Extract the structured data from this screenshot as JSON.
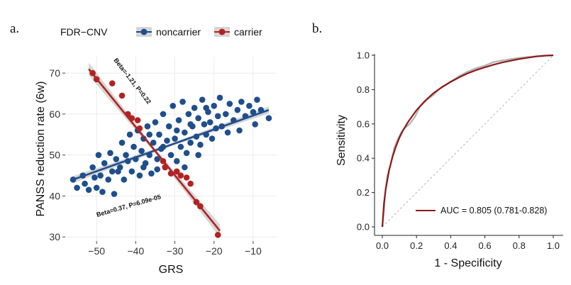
{
  "panel_labels": {
    "a": "a.",
    "b": "b."
  },
  "colors": {
    "noncarrier": "#1f4e8c",
    "carrier": "#b22222",
    "grid": "#ebebeb",
    "band": "#c8c8c8",
    "roc_smooth": "#8b1a1a",
    "roc_empirical": "#b0b0b0",
    "diagonal": "#b5b5b5"
  },
  "chart_data": [
    {
      "type": "scatter",
      "panel": "a",
      "xlabel": "GRS",
      "ylabel": "PANSS reduction rate (6w)",
      "xlim": [
        -58,
        -4
      ],
      "ylim": [
        29,
        74
      ],
      "xticks": [
        -50,
        -40,
        -30,
        -20,
        -10
      ],
      "yticks": [
        30,
        40,
        50,
        60,
        70
      ],
      "grid": true,
      "legend": {
        "title": "FDR−CNV",
        "placement": "top",
        "entries": [
          "noncarrier",
          "carrier"
        ]
      },
      "series": [
        {
          "name": "noncarrier",
          "fit": {
            "x": [
              -56,
              -6
            ],
            "y": [
              44.0,
              61.0
            ]
          },
          "annotation": "Beta=0.37, P=6.09e-05",
          "points": [
            [
              -56.0,
              44.0
            ],
            [
              -55.0,
              42.0
            ],
            [
              -53.5,
              45.0
            ],
            [
              -53.0,
              43.0
            ],
            [
              -52.0,
              41.5
            ],
            [
              -51.0,
              47.0
            ],
            [
              -50.5,
              44.5
            ],
            [
              -50.0,
              42.0
            ],
            [
              -49.5,
              50.0
            ],
            [
              -49.0,
              45.0
            ],
            [
              -48.5,
              41.0
            ],
            [
              -48.0,
              48.0
            ],
            [
              -47.0,
              44.0
            ],
            [
              -46.5,
              50.5
            ],
            [
              -46.0,
              46.0
            ],
            [
              -45.5,
              40.5
            ],
            [
              -45.0,
              49.0
            ],
            [
              -44.0,
              47.0
            ],
            [
              -43.5,
              53.0
            ],
            [
              -43.0,
              44.0
            ],
            [
              -42.5,
              50.0
            ],
            [
              -42.0,
              48.5
            ],
            [
              -41.5,
              55.0
            ],
            [
              -41.0,
              46.0
            ],
            [
              -40.5,
              52.0
            ],
            [
              -40.0,
              49.0
            ],
            [
              -39.5,
              56.0
            ],
            [
              -39.0,
              45.0
            ],
            [
              -38.5,
              51.0
            ],
            [
              -38.0,
              54.0
            ],
            [
              -37.5,
              48.0
            ],
            [
              -37.0,
              57.0
            ],
            [
              -36.5,
              50.0
            ],
            [
              -36.0,
              45.5
            ],
            [
              -35.5,
              53.0
            ],
            [
              -35.0,
              58.0
            ],
            [
              -34.5,
              49.0
            ],
            [
              -34.0,
              55.0
            ],
            [
              -33.5,
              51.5
            ],
            [
              -33.0,
              60.0
            ],
            [
              -32.5,
              47.0
            ],
            [
              -32.0,
              53.5
            ],
            [
              -31.5,
              57.0
            ],
            [
              -31.0,
              50.0
            ],
            [
              -30.5,
              62.0
            ],
            [
              -30.0,
              54.0
            ],
            [
              -29.5,
              48.5
            ],
            [
              -29.0,
              58.5
            ],
            [
              -28.5,
              52.0
            ],
            [
              -28.0,
              63.0
            ],
            [
              -27.5,
              55.5
            ],
            [
              -27.0,
              50.5
            ],
            [
              -26.5,
              60.0
            ],
            [
              -26.0,
              53.0
            ],
            [
              -25.5,
              57.0
            ],
            [
              -25.0,
              61.5
            ],
            [
              -24.5,
              54.5
            ],
            [
              -24.0,
              59.0
            ],
            [
              -23.5,
              52.5
            ],
            [
              -23.0,
              63.5
            ],
            [
              -22.5,
              57.5
            ],
            [
              -22.0,
              55.0
            ],
            [
              -21.5,
              60.5
            ],
            [
              -21.0,
              58.0
            ],
            [
              -20.5,
              54.0
            ],
            [
              -20.0,
              62.0
            ],
            [
              -19.5,
              56.5
            ],
            [
              -19.0,
              59.5
            ],
            [
              -18.5,
              64.0
            ],
            [
              -18.0,
              57.0
            ],
            [
              -17.0,
              60.0
            ],
            [
              -16.5,
              55.5
            ],
            [
              -16.0,
              62.5
            ],
            [
              -15.0,
              58.5
            ],
            [
              -14.0,
              61.0
            ],
            [
              -13.5,
              56.0
            ],
            [
              -13.0,
              63.0
            ],
            [
              -12.0,
              59.5
            ],
            [
              -11.0,
              62.0
            ],
            [
              -10.0,
              60.5
            ],
            [
              -9.5,
              57.5
            ],
            [
              -9.0,
              63.5
            ],
            [
              -8.0,
              61.0
            ],
            [
              -6.0,
              59.0
            ],
            [
              -44.5,
              46.0
            ],
            [
              -36.5,
              55.0
            ],
            [
              -34.5,
              46.5
            ],
            [
              -29.5,
              56.0
            ],
            [
              -27.5,
              47.0
            ],
            [
              -26.0,
              57.5
            ],
            [
              -24.0,
              50.0
            ],
            [
              -33.0,
              52.0
            ],
            [
              -38.0,
              47.0
            ],
            [
              -22.0,
              61.5
            ]
          ]
        },
        {
          "name": "carrier",
          "fit": {
            "x": [
              -52,
              -18.5
            ],
            "y": [
              71.0,
              31.5
            ]
          },
          "annotation": "Beta=-1.21, P=0.22",
          "points": [
            [
              -51.0,
              70.0
            ],
            [
              -50.0,
              68.5
            ],
            [
              -46.0,
              67.5
            ],
            [
              -43.5,
              64.5
            ],
            [
              -42.0,
              60.0
            ],
            [
              -41.0,
              59.0
            ],
            [
              -39.5,
              58.5
            ],
            [
              -39.0,
              56.5
            ],
            [
              -33.0,
              48.5
            ],
            [
              -32.5,
              47.0
            ],
            [
              -31.0,
              45.5
            ],
            [
              -29.5,
              46.0
            ],
            [
              -28.5,
              45.0
            ],
            [
              -27.0,
              44.5
            ],
            [
              -26.0,
              43.0
            ],
            [
              -24.5,
              38.5
            ],
            [
              -23.5,
              37.5
            ],
            [
              -19.0,
              30.5
            ]
          ]
        }
      ]
    },
    {
      "type": "line",
      "panel": "b",
      "xlabel": "1 - Specificity",
      "ylabel": "Sensitivity",
      "xlim": [
        0,
        1
      ],
      "ylim": [
        0,
        1
      ],
      "xticks": [
        "0.0",
        "0.2",
        "0.4",
        "0.6",
        "0.8",
        "1.0"
      ],
      "yticks": [
        "0.0",
        "0.2",
        "0.4",
        "0.6",
        "0.8",
        "1.0"
      ],
      "grid": false,
      "legend": {
        "placement": "bottom-right",
        "entries": [
          "AUC = 0.805 (0.781-0.828)"
        ]
      },
      "series": [
        {
          "name": "AUC = 0.805 (0.781-0.828)",
          "x": [
            0,
            0.01,
            0.02,
            0.04,
            0.06,
            0.08,
            0.1,
            0.12,
            0.15,
            0.2,
            0.25,
            0.3,
            0.35,
            0.4,
            0.45,
            0.5,
            0.55,
            0.6,
            0.65,
            0.7,
            0.75,
            0.8,
            0.85,
            0.9,
            0.95,
            1.0
          ],
          "y": [
            0,
            0.14,
            0.22,
            0.33,
            0.41,
            0.47,
            0.52,
            0.56,
            0.61,
            0.68,
            0.735,
            0.78,
            0.815,
            0.845,
            0.872,
            0.895,
            0.914,
            0.93,
            0.945,
            0.958,
            0.968,
            0.978,
            0.986,
            0.993,
            0.998,
            1.0
          ]
        },
        {
          "name": "",
          "x": [
            0,
            0.005,
            0.01,
            0.02,
            0.03,
            0.05,
            0.07,
            0.09,
            0.11,
            0.13,
            0.16,
            0.19,
            0.22,
            0.26,
            0.3,
            0.34,
            0.38,
            0.42,
            0.46,
            0.5,
            0.55,
            0.6,
            0.65,
            0.7,
            0.8,
            0.9,
            1.0
          ],
          "y": [
            0,
            0.05,
            0.1,
            0.23,
            0.3,
            0.37,
            0.46,
            0.51,
            0.55,
            0.575,
            0.6,
            0.64,
            0.7,
            0.74,
            0.77,
            0.81,
            0.835,
            0.86,
            0.885,
            0.905,
            0.925,
            0.94,
            0.96,
            0.97,
            0.985,
            0.995,
            1.0
          ]
        }
      ]
    }
  ]
}
